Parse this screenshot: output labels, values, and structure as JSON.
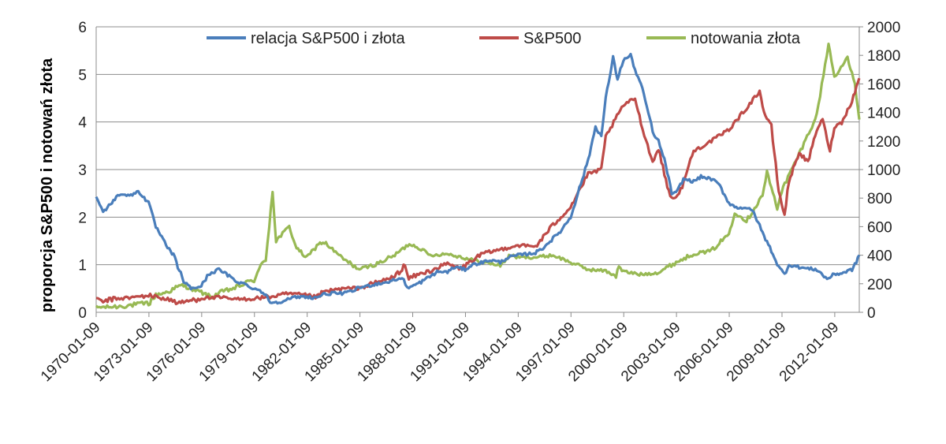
{
  "chart_data": {
    "type": "line",
    "title": "",
    "xlabel": "",
    "ylabel": "proporcja S&P500 i notowań złota",
    "y2label": "",
    "x_ticks": [
      "1970-01-09",
      "1973-01-09",
      "1976-01-09",
      "1979-01-09",
      "1982-01-09",
      "1985-01-09",
      "1988-01-09",
      "1991-01-09",
      "1994-01-09",
      "1997-01-09",
      "2000-01-09",
      "2003-01-09",
      "2006-01-09",
      "2009-01-09",
      "2012-01-09"
    ],
    "x_range": [
      "1970-01-09",
      "2013-06-01"
    ],
    "ylim": [
      0,
      6
    ],
    "y_ticks": [
      "0",
      "1",
      "2",
      "3",
      "4",
      "5",
      "6"
    ],
    "y2lim": [
      0,
      2000
    ],
    "y2_ticks": [
      "0",
      "200",
      "400",
      "600",
      "800",
      "1000",
      "1200",
      "1400",
      "1600",
      "1800",
      "2000"
    ],
    "grid": "horizontal",
    "legend_position": "top",
    "series": [
      {
        "name": "relacja S&P500 i złota",
        "color": "#4a7ebb",
        "axis": "left",
        "points": [
          [
            "1970-01-09",
            2.45
          ],
          [
            "1970-06-01",
            2.1
          ],
          [
            "1971-01-01",
            2.35
          ],
          [
            "1971-06-01",
            2.5
          ],
          [
            "1972-01-01",
            2.45
          ],
          [
            "1972-06-01",
            2.55
          ],
          [
            "1973-01-01",
            2.3
          ],
          [
            "1973-06-01",
            1.8
          ],
          [
            "1974-01-01",
            1.4
          ],
          [
            "1974-06-01",
            1.2
          ],
          [
            "1975-01-01",
            0.65
          ],
          [
            "1975-06-01",
            0.5
          ],
          [
            "1976-01-01",
            0.55
          ],
          [
            "1976-06-01",
            0.8
          ],
          [
            "1977-01-01",
            0.9
          ],
          [
            "1977-06-01",
            0.8
          ],
          [
            "1978-01-01",
            0.65
          ],
          [
            "1978-06-01",
            0.6
          ],
          [
            "1979-01-01",
            0.5
          ],
          [
            "1979-06-01",
            0.45
          ],
          [
            "1980-01-01",
            0.2
          ],
          [
            "1980-06-01",
            0.22
          ],
          [
            "1981-01-01",
            0.28
          ],
          [
            "1981-06-01",
            0.32
          ],
          [
            "1982-01-01",
            0.33
          ],
          [
            "1982-06-01",
            0.3
          ],
          [
            "1983-01-01",
            0.38
          ],
          [
            "1983-06-01",
            0.4
          ],
          [
            "1984-01-01",
            0.4
          ],
          [
            "1984-06-01",
            0.42
          ],
          [
            "1985-01-01",
            0.52
          ],
          [
            "1985-06-01",
            0.55
          ],
          [
            "1986-01-01",
            0.6
          ],
          [
            "1986-06-01",
            0.62
          ],
          [
            "1987-01-01",
            0.68
          ],
          [
            "1987-06-01",
            0.72
          ],
          [
            "1987-10-20",
            0.5
          ],
          [
            "1988-01-01",
            0.55
          ],
          [
            "1988-06-01",
            0.62
          ],
          [
            "1989-01-01",
            0.75
          ],
          [
            "1989-06-01",
            0.85
          ],
          [
            "1990-01-01",
            0.85
          ],
          [
            "1990-06-01",
            0.95
          ],
          [
            "1991-01-01",
            0.9
          ],
          [
            "1991-06-01",
            1.0
          ],
          [
            "1992-01-01",
            1.05
          ],
          [
            "1992-06-01",
            1.1
          ],
          [
            "1993-01-01",
            1.05
          ],
          [
            "1993-06-01",
            1.15
          ],
          [
            "1994-01-01",
            1.2
          ],
          [
            "1994-06-01",
            1.22
          ],
          [
            "1995-01-01",
            1.25
          ],
          [
            "1995-06-01",
            1.35
          ],
          [
            "1996-01-01",
            1.55
          ],
          [
            "1996-06-01",
            1.7
          ],
          [
            "1997-01-01",
            2.0
          ],
          [
            "1997-06-01",
            2.5
          ],
          [
            "1998-01-01",
            3.2
          ],
          [
            "1998-06-01",
            3.9
          ],
          [
            "1998-10-01",
            3.7
          ],
          [
            "1999-01-01",
            4.5
          ],
          [
            "1999-06-01",
            5.35
          ],
          [
            "1999-09-01",
            4.9
          ],
          [
            "2000-01-01",
            5.3
          ],
          [
            "2000-06-01",
            5.4
          ],
          [
            "2000-10-01",
            5.0
          ],
          [
            "2001-01-01",
            4.8
          ],
          [
            "2001-06-01",
            4.2
          ],
          [
            "2001-10-01",
            3.7
          ],
          [
            "2002-01-01",
            3.6
          ],
          [
            "2002-06-01",
            3.1
          ],
          [
            "2002-10-01",
            2.5
          ],
          [
            "2003-01-01",
            2.5
          ],
          [
            "2003-06-01",
            2.8
          ],
          [
            "2004-01-01",
            2.75
          ],
          [
            "2004-06-01",
            2.85
          ],
          [
            "2005-01-01",
            2.8
          ],
          [
            "2005-06-01",
            2.7
          ],
          [
            "2006-01-01",
            2.3
          ],
          [
            "2006-06-01",
            2.2
          ],
          [
            "2007-01-01",
            2.2
          ],
          [
            "2007-06-01",
            2.1
          ],
          [
            "2008-01-01",
            1.6
          ],
          [
            "2008-06-01",
            1.3
          ],
          [
            "2008-11-01",
            0.95
          ],
          [
            "2009-03-01",
            0.8
          ],
          [
            "2009-06-01",
            1.0
          ],
          [
            "2010-01-01",
            0.95
          ],
          [
            "2010-06-01",
            0.92
          ],
          [
            "2011-01-01",
            0.9
          ],
          [
            "2011-08-01",
            0.7
          ],
          [
            "2012-01-01",
            0.8
          ],
          [
            "2012-06-01",
            0.82
          ],
          [
            "2013-01-01",
            0.9
          ],
          [
            "2013-04-01",
            1.05
          ],
          [
            "2013-06-01",
            1.2
          ]
        ]
      },
      {
        "name": "S&P500",
        "color": "#be4b48",
        "axis": "right",
        "points": [
          [
            "1970-01-09",
            90
          ],
          [
            "1970-06-01",
            75
          ],
          [
            "1971-01-01",
            95
          ],
          [
            "1972-01-01",
            102
          ],
          [
            "1973-01-01",
            118
          ],
          [
            "1974-01-01",
            95
          ],
          [
            "1974-10-01",
            65
          ],
          [
            "1975-01-01",
            72
          ],
          [
            "1976-01-01",
            100
          ],
          [
            "1977-01-01",
            103
          ],
          [
            "1978-01-01",
            90
          ],
          [
            "1979-01-01",
            97
          ],
          [
            "1980-01-01",
            110
          ],
          [
            "1981-01-01",
            130
          ],
          [
            "1982-01-01",
            118
          ],
          [
            "1982-08-01",
            105
          ],
          [
            "1983-01-01",
            145
          ],
          [
            "1984-01-01",
            165
          ],
          [
            "1985-01-01",
            170
          ],
          [
            "1986-01-01",
            210
          ],
          [
            "1987-01-01",
            250
          ],
          [
            "1987-08-01",
            330
          ],
          [
            "1987-10-20",
            230
          ],
          [
            "1988-01-01",
            250
          ],
          [
            "1989-01-01",
            290
          ],
          [
            "1990-01-01",
            340
          ],
          [
            "1990-10-01",
            305
          ],
          [
            "1991-01-01",
            330
          ],
          [
            "1992-01-01",
            410
          ],
          [
            "1993-01-01",
            440
          ],
          [
            "1994-01-01",
            470
          ],
          [
            "1995-01-01",
            460
          ],
          [
            "1996-01-01",
            610
          ],
          [
            "1997-01-01",
            740
          ],
          [
            "1998-01-01",
            970
          ],
          [
            "1998-10-01",
            1000
          ],
          [
            "1999-01-01",
            1230
          ],
          [
            "2000-01-01",
            1450
          ],
          [
            "2000-09-01",
            1500
          ],
          [
            "2001-01-01",
            1330
          ],
          [
            "2001-09-01",
            1050
          ],
          [
            "2002-01-01",
            1150
          ],
          [
            "2002-07-01",
            880
          ],
          [
            "2002-10-01",
            800
          ],
          [
            "2003-03-01",
            820
          ],
          [
            "2004-01-01",
            1130
          ],
          [
            "2005-01-01",
            1200
          ],
          [
            "2006-01-01",
            1280
          ],
          [
            "2007-01-01",
            1430
          ],
          [
            "2007-10-01",
            1550
          ],
          [
            "2008-01-01",
            1400
          ],
          [
            "2008-06-01",
            1300
          ],
          [
            "2008-11-01",
            850
          ],
          [
            "2009-03-01",
            680
          ],
          [
            "2009-06-01",
            920
          ],
          [
            "2010-01-01",
            1120
          ],
          [
            "2010-07-01",
            1050
          ],
          [
            "2011-01-01",
            1280
          ],
          [
            "2011-05-01",
            1350
          ],
          [
            "2011-10-01",
            1130
          ],
          [
            "2012-01-01",
            1300
          ],
          [
            "2012-06-01",
            1330
          ],
          [
            "2013-01-01",
            1480
          ],
          [
            "2013-06-01",
            1640
          ]
        ]
      },
      {
        "name": "notowania złota",
        "color": "#98b954",
        "axis": "right",
        "points": [
          [
            "1970-01-09",
            35
          ],
          [
            "1971-01-01",
            38
          ],
          [
            "1972-01-01",
            50
          ],
          [
            "1973-01-01",
            65
          ],
          [
            "1973-06-01",
            120
          ],
          [
            "1974-01-01",
            140
          ],
          [
            "1974-12-01",
            190
          ],
          [
            "1975-06-01",
            165
          ],
          [
            "1976-01-01",
            140
          ],
          [
            "1976-08-01",
            105
          ],
          [
            "1977-01-01",
            135
          ],
          [
            "1978-01-01",
            175
          ],
          [
            "1979-01-01",
            230
          ],
          [
            "1979-09-01",
            380
          ],
          [
            "1980-01-21",
            850
          ],
          [
            "1980-04-01",
            500
          ],
          [
            "1981-01-01",
            600
          ],
          [
            "1981-06-01",
            450
          ],
          [
            "1982-01-01",
            380
          ],
          [
            "1982-09-01",
            480
          ],
          [
            "1983-01-01",
            490
          ],
          [
            "1984-01-01",
            380
          ],
          [
            "1985-01-01",
            300
          ],
          [
            "1986-01-01",
            340
          ],
          [
            "1987-01-01",
            400
          ],
          [
            "1987-11-01",
            480
          ],
          [
            "1988-06-01",
            450
          ],
          [
            "1989-01-01",
            400
          ],
          [
            "1990-01-01",
            410
          ],
          [
            "1991-01-01",
            380
          ],
          [
            "1992-01-01",
            350
          ],
          [
            "1993-01-01",
            330
          ],
          [
            "1993-08-01",
            400
          ],
          [
            "1994-01-01",
            385
          ],
          [
            "1995-01-01",
            385
          ],
          [
            "1996-01-01",
            400
          ],
          [
            "1997-01-01",
            350
          ],
          [
            "1998-01-01",
            300
          ],
          [
            "1999-01-01",
            290
          ],
          [
            "1999-08-01",
            255
          ],
          [
            "1999-10-01",
            320
          ],
          [
            "2000-01-01",
            285
          ],
          [
            "2001-01-01",
            265
          ],
          [
            "2002-01-01",
            280
          ],
          [
            "2003-01-01",
            350
          ],
          [
            "2004-01-01",
            410
          ],
          [
            "2005-01-01",
            430
          ],
          [
            "2006-01-01",
            550
          ],
          [
            "2006-05-01",
            700
          ],
          [
            "2007-01-01",
            640
          ],
          [
            "2007-12-01",
            820
          ],
          [
            "2008-03-01",
            980
          ],
          [
            "2008-10-01",
            730
          ],
          [
            "2009-01-01",
            850
          ],
          [
            "2010-01-01",
            1110
          ],
          [
            "2011-01-01",
            1380
          ],
          [
            "2011-09-01",
            1880
          ],
          [
            "2012-01-01",
            1650
          ],
          [
            "2012-10-01",
            1780
          ],
          [
            "2013-03-01",
            1600
          ],
          [
            "2013-06-01",
            1350
          ]
        ]
      }
    ]
  }
}
